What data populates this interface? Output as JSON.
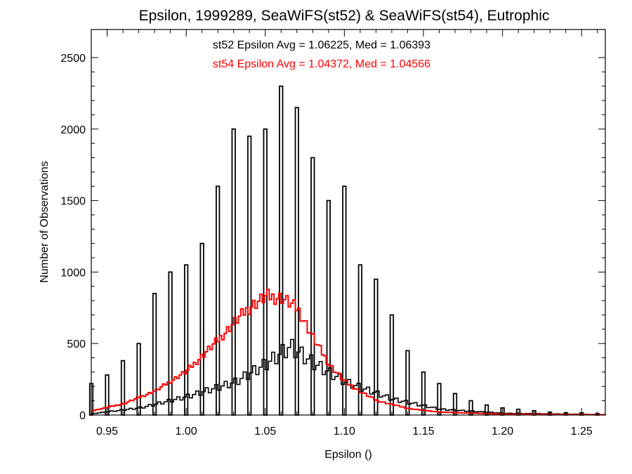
{
  "chart_data": {
    "type": "histogram",
    "title": "Epsilon, 1999289, SeaWiFS(st52) & SeaWiFS(st54), Eutrophic",
    "xlabel": "Epsilon ()",
    "ylabel": "Number of Observations",
    "xlim": [
      0.94,
      1.265
    ],
    "ylim": [
      0,
      2500
    ],
    "x_ticks": [
      0.95,
      1.0,
      1.05,
      1.1,
      1.15,
      1.2,
      1.25
    ],
    "x_tick_labels": [
      "0.95",
      "1.00",
      "1.05",
      "1.10",
      "1.15",
      "1.20",
      "1.25"
    ],
    "y_ticks": [
      0,
      500,
      1000,
      1500,
      2000,
      2500
    ],
    "y_tick_labels": [
      "0",
      "500",
      "1000",
      "1500",
      "2000",
      "2500"
    ],
    "grid": false,
    "annotations": [
      {
        "text": "st52 Epsilon Avg = 1.06225, Med = 1.06393",
        "color": "#000000"
      },
      {
        "text": "st54 Epsilon Avg = 1.04372, Med = 1.04566",
        "color": "#ff0000"
      }
    ],
    "series": [
      {
        "color": "#000000",
        "spikes": [
          {
            "x": 0.94,
            "y": 220
          },
          {
            "x": 0.95,
            "y": 280
          },
          {
            "x": 0.96,
            "y": 380
          },
          {
            "x": 0.97,
            "y": 500
          },
          {
            "x": 0.98,
            "y": 850
          },
          {
            "x": 0.99,
            "y": 1000
          },
          {
            "x": 1.0,
            "y": 1050
          },
          {
            "x": 1.01,
            "y": 1200
          },
          {
            "x": 1.02,
            "y": 1600
          },
          {
            "x": 1.03,
            "y": 2000
          },
          {
            "x": 1.04,
            "y": 1950
          },
          {
            "x": 1.05,
            "y": 2000
          },
          {
            "x": 1.06,
            "y": 2300
          },
          {
            "x": 1.07,
            "y": 2150
          },
          {
            "x": 1.08,
            "y": 1800
          },
          {
            "x": 1.09,
            "y": 1500
          },
          {
            "x": 1.1,
            "y": 1600
          },
          {
            "x": 1.11,
            "y": 1050
          },
          {
            "x": 1.12,
            "y": 950
          },
          {
            "x": 1.13,
            "y": 700
          },
          {
            "x": 1.14,
            "y": 450
          },
          {
            "x": 1.15,
            "y": 300
          },
          {
            "x": 1.16,
            "y": 220
          },
          {
            "x": 1.17,
            "y": 150
          },
          {
            "x": 1.18,
            "y": 100
          },
          {
            "x": 1.19,
            "y": 70
          },
          {
            "x": 1.2,
            "y": 50
          },
          {
            "x": 1.21,
            "y": 40
          },
          {
            "x": 1.22,
            "y": 30
          },
          {
            "x": 1.23,
            "y": 20
          },
          {
            "x": 1.24,
            "y": 15
          },
          {
            "x": 1.25,
            "y": 15
          },
          {
            "x": 1.26,
            "y": 10
          }
        ],
        "background_profile": [
          {
            "x": 0.94,
            "y": 10
          },
          {
            "x": 0.97,
            "y": 50
          },
          {
            "x": 1.0,
            "y": 130
          },
          {
            "x": 1.03,
            "y": 230
          },
          {
            "x": 1.05,
            "y": 360
          },
          {
            "x": 1.065,
            "y": 480
          },
          {
            "x": 1.08,
            "y": 360
          },
          {
            "x": 1.1,
            "y": 230
          },
          {
            "x": 1.13,
            "y": 110
          },
          {
            "x": 1.16,
            "y": 40
          },
          {
            "x": 1.2,
            "y": 12
          },
          {
            "x": 1.265,
            "y": 3
          }
        ]
      },
      {
        "color": "#ff0000",
        "profile": [
          {
            "x": 0.94,
            "y": 30
          },
          {
            "x": 0.96,
            "y": 80
          },
          {
            "x": 0.98,
            "y": 170
          },
          {
            "x": 1.0,
            "y": 310
          },
          {
            "x": 1.02,
            "y": 530
          },
          {
            "x": 1.03,
            "y": 650
          },
          {
            "x": 1.04,
            "y": 760
          },
          {
            "x": 1.05,
            "y": 830
          },
          {
            "x": 1.06,
            "y": 820
          },
          {
            "x": 1.07,
            "y": 740
          },
          {
            "x": 1.08,
            "y": 530
          },
          {
            "x": 1.09,
            "y": 350
          },
          {
            "x": 1.1,
            "y": 230
          },
          {
            "x": 1.11,
            "y": 160
          },
          {
            "x": 1.12,
            "y": 100
          },
          {
            "x": 1.14,
            "y": 45
          },
          {
            "x": 1.16,
            "y": 20
          },
          {
            "x": 1.2,
            "y": 6
          },
          {
            "x": 1.265,
            "y": 2
          }
        ]
      }
    ]
  }
}
